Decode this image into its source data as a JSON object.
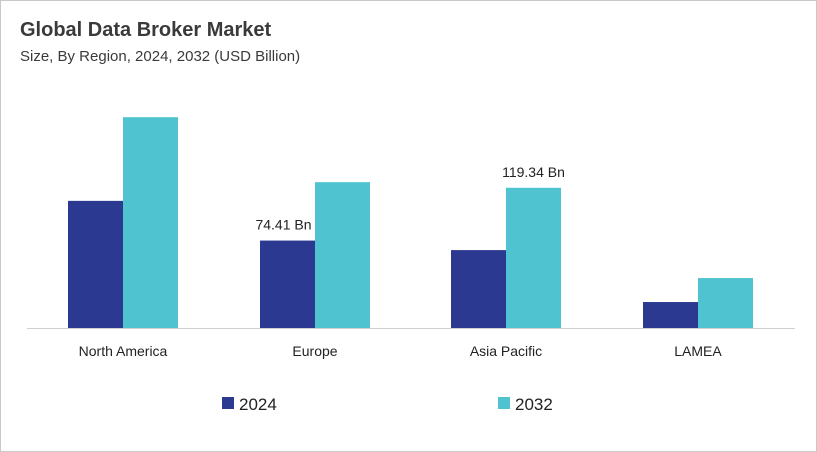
{
  "chart_data": {
    "type": "bar",
    "title": "Global Data Broker Market",
    "subtitle": "Size, By Region, 2024, 2032 (USD Billion)",
    "categories": [
      "North America",
      "Europe",
      "Asia Pacific",
      "LAMEA"
    ],
    "series": [
      {
        "name": "2024",
        "color": "#2b3990",
        "values": [
          108.2,
          74.41,
          66.3,
          22.1
        ]
      },
      {
        "name": "2032",
        "color": "#4fc3cf",
        "values": [
          179.4,
          124.1,
          119.34,
          42.5
        ]
      }
    ],
    "data_labels": [
      {
        "series": "2024",
        "category": "Europe",
        "text": "74.41 Bn"
      },
      {
        "series": "2032",
        "category": "Asia Pacific",
        "text": "119.34 Bn"
      }
    ],
    "ylim": [
      0,
      200
    ],
    "y_axis_visible": false,
    "grid": false,
    "legend": "bottom"
  }
}
